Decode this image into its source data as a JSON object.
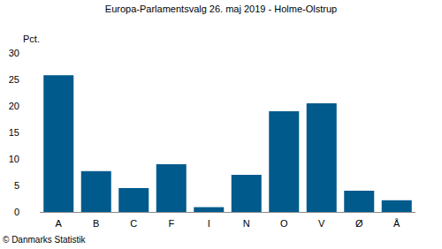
{
  "chart_data": {
    "type": "bar",
    "title": "Europa-Parlamentsvalg 26. maj 2019 - Holme-Olstrup",
    "ylabel": "Pct.",
    "categories": [
      "A",
      "B",
      "C",
      "F",
      "I",
      "N",
      "O",
      "V",
      "Ø",
      "Å"
    ],
    "values": [
      25.8,
      7.7,
      4.5,
      9.0,
      0.9,
      7.0,
      19.0,
      20.5,
      4.0,
      2.2
    ],
    "color": "#005a8c",
    "ylim": [
      0,
      30
    ],
    "yticks": [
      0,
      5,
      10,
      15,
      20,
      25,
      30
    ],
    "grid": false,
    "annotations": [
      "© Danmarks Statistik"
    ]
  }
}
